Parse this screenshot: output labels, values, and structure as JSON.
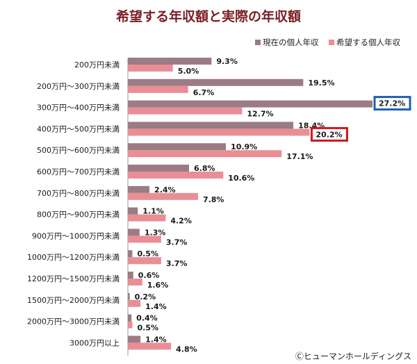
{
  "chart_data": {
    "type": "bar",
    "orientation": "horizontal",
    "title": "希望する年収額と実際の年収額",
    "categories": [
      "200万円未満",
      "200万円～300万円未満",
      "300万円～400万円未満",
      "400万円～500万円未満",
      "500万円～600万円未満",
      "600万円～700万円未満",
      "700万円～800万円未満",
      "800万円～900万円未満",
      "900万円～1000万円未満",
      "1000万円～1200万円未満",
      "1200万円～1500万円未満",
      "1500万円～2000万円未満",
      "2000万円～3000万円未満",
      "3000万円以上"
    ],
    "series": [
      {
        "name": "現在の個人年収",
        "color": "#9b7b84",
        "values": [
          9.3,
          19.5,
          27.2,
          18.4,
          10.9,
          6.8,
          2.4,
          1.1,
          1.3,
          0.5,
          0.6,
          0.2,
          0.4,
          1.4
        ],
        "labels": [
          "9.3%",
          "19.5%",
          "27.2%",
          "18.4%",
          "10.9%",
          "6.8%",
          "2.4%",
          "1.1%",
          "1.3%",
          "0.5%",
          "0.6%",
          "0.2%",
          "0.4%",
          "1.4%"
        ]
      },
      {
        "name": "希望する個人年収",
        "color": "#e98e95",
        "values": [
          5.0,
          6.7,
          12.7,
          20.2,
          17.1,
          10.6,
          7.8,
          4.2,
          3.7,
          3.7,
          1.6,
          1.4,
          0.5,
          4.8
        ],
        "labels": [
          "5.0%",
          "6.7%",
          "12.7%",
          "20.2%",
          "17.1%",
          "10.6%",
          "7.8%",
          "4.2%",
          "3.7%",
          "3.7%",
          "1.6%",
          "1.4%",
          "0.5%",
          "4.8%"
        ]
      }
    ],
    "xlim": [
      0,
      27.2
    ],
    "legend_position": "top-right",
    "grid": false,
    "highlights": [
      {
        "series": 0,
        "index": 2,
        "color": "#1f5fb0"
      },
      {
        "series": 1,
        "index": 3,
        "color": "#d0161d"
      }
    ]
  },
  "credit": "Ⓒヒューマンホールディングス"
}
